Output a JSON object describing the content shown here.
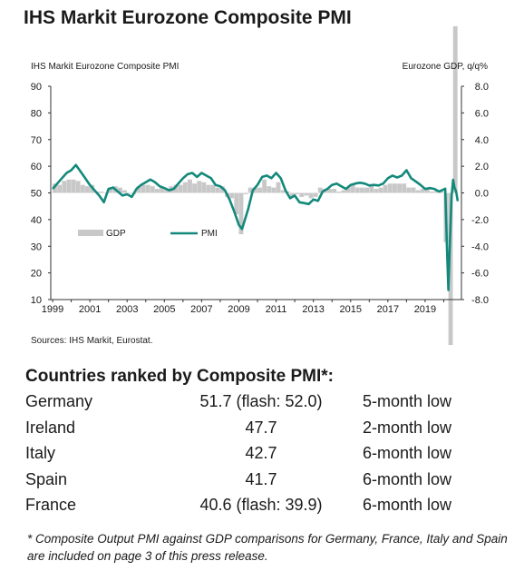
{
  "page": {
    "title": "IHS Markit Eurozone Composite PMI",
    "sources": "Sources: IHS Markit, Eurostat."
  },
  "chart_data": {
    "type": "line",
    "title": "IHS Markit Eurozone Composite PMI",
    "left_axis_label": "IHS Markit Eurozone Composite PMI",
    "right_axis_label": "Eurozone GDP, q/q%",
    "left_ylim": [
      10,
      90
    ],
    "left_ticks": [
      "90",
      "80",
      "70",
      "60",
      "50",
      "40",
      "30",
      "20",
      "10"
    ],
    "right_ylim": [
      -8.0,
      8.0
    ],
    "right_ticks": [
      "8.0",
      "6.0",
      "4.0",
      "2.0",
      "0.0",
      "-2.0",
      "-4.0",
      "-6.0",
      "-8.0"
    ],
    "xlim": [
      1998.9,
      2020.95
    ],
    "x_ticks": [
      "1999",
      "2001",
      "2003",
      "2005",
      "2007",
      "2009",
      "2011",
      "2013",
      "2015",
      "2017",
      "2019"
    ],
    "legend": {
      "position": "lower-left",
      "gdp_label": "GDP",
      "pmi_label": "PMI"
    },
    "colors": {
      "pmi": "#13897b",
      "gdp": "#c8c8c8"
    },
    "series": [
      {
        "name": "PMI",
        "axis": "left",
        "x": [
          1999.0,
          1999.25,
          1999.5,
          1999.75,
          2000.0,
          2000.25,
          2000.5,
          2000.75,
          2001.0,
          2001.25,
          2001.5,
          2001.75,
          2002.0,
          2002.25,
          2002.5,
          2002.75,
          2003.0,
          2003.25,
          2003.5,
          2003.75,
          2004.0,
          2004.25,
          2004.5,
          2004.75,
          2005.0,
          2005.25,
          2005.5,
          2005.75,
          2006.0,
          2006.25,
          2006.5,
          2006.75,
          2007.0,
          2007.25,
          2007.5,
          2007.75,
          2008.0,
          2008.25,
          2008.5,
          2008.75,
          2009.0,
          2009.17,
          2009.5,
          2009.75,
          2010.0,
          2010.25,
          2010.5,
          2010.75,
          2011.0,
          2011.25,
          2011.5,
          2011.75,
          2012.0,
          2012.25,
          2012.5,
          2012.75,
          2013.0,
          2013.25,
          2013.5,
          2013.75,
          2014.0,
          2014.25,
          2014.5,
          2014.75,
          2015.0,
          2015.25,
          2015.5,
          2015.75,
          2016.0,
          2016.25,
          2016.5,
          2016.75,
          2017.0,
          2017.25,
          2017.5,
          2017.75,
          2018.0,
          2018.25,
          2018.5,
          2018.75,
          2019.0,
          2019.25,
          2019.5,
          2019.75,
          2020.0,
          2020.08,
          2020.17,
          2020.25,
          2020.33,
          2020.42,
          2020.5,
          2020.58,
          2020.67,
          2020.75
        ],
        "values": [
          51.5,
          53.5,
          55.5,
          57.5,
          58.5,
          60.5,
          58.0,
          55.5,
          53.0,
          51.0,
          49.0,
          46.5,
          51.5,
          52.0,
          50.5,
          49.0,
          49.5,
          48.5,
          51.5,
          53.0,
          54.0,
          55.0,
          54.0,
          52.5,
          51.8,
          51.0,
          51.5,
          53.5,
          55.5,
          57.0,
          57.5,
          56.0,
          57.5,
          56.5,
          55.5,
          53.0,
          52.5,
          51.0,
          47.5,
          43.0,
          38.0,
          36.5,
          44.0,
          51.0,
          53.0,
          56.0,
          56.5,
          55.5,
          57.5,
          55.5,
          51.0,
          48.0,
          49.0,
          46.5,
          46.2,
          45.8,
          47.5,
          47.0,
          50.5,
          51.5,
          53.0,
          53.5,
          52.5,
          51.5,
          53.0,
          53.5,
          53.8,
          53.5,
          52.8,
          53.0,
          52.8,
          53.5,
          55.5,
          56.5,
          55.8,
          56.5,
          58.5,
          55.5,
          54.3,
          53.0,
          51.5,
          51.8,
          51.5,
          50.5,
          51.3,
          51.6,
          29.7,
          13.6,
          31.9,
          48.5,
          54.9,
          51.9,
          50.4,
          46.9
        ]
      },
      {
        "name": "GDP",
        "axis": "right",
        "x": [
          1999.0,
          1999.25,
          1999.5,
          1999.75,
          2000.0,
          2000.25,
          2000.5,
          2000.75,
          2001.0,
          2001.25,
          2001.5,
          2001.75,
          2002.0,
          2002.25,
          2002.5,
          2002.75,
          2003.0,
          2003.25,
          2003.5,
          2003.75,
          2004.0,
          2004.25,
          2004.5,
          2004.75,
          2005.0,
          2005.25,
          2005.5,
          2005.75,
          2006.0,
          2006.25,
          2006.5,
          2006.75,
          2007.0,
          2007.25,
          2007.5,
          2007.75,
          2008.0,
          2008.25,
          2008.5,
          2008.75,
          2009.0,
          2009.25,
          2009.5,
          2009.75,
          2010.0,
          2010.25,
          2010.5,
          2010.75,
          2011.0,
          2011.25,
          2011.5,
          2011.75,
          2012.0,
          2012.25,
          2012.5,
          2012.75,
          2013.0,
          2013.25,
          2013.5,
          2013.75,
          2014.0,
          2014.25,
          2014.5,
          2014.75,
          2015.0,
          2015.25,
          2015.5,
          2015.75,
          2016.0,
          2016.25,
          2016.5,
          2016.75,
          2017.0,
          2017.25,
          2017.5,
          2017.75,
          2018.0,
          2018.25,
          2018.5,
          2018.75,
          2019.0,
          2019.25,
          2019.5,
          2019.75,
          2020.0,
          2020.25,
          2020.5
        ],
        "values": [
          0.7,
          0.6,
          0.9,
          1.0,
          1.0,
          0.9,
          0.6,
          0.5,
          0.6,
          0.1,
          0.1,
          0.0,
          0.4,
          0.5,
          0.4,
          0.2,
          0.0,
          -0.1,
          0.5,
          0.6,
          0.6,
          0.5,
          0.3,
          0.4,
          0.3,
          0.5,
          0.6,
          0.6,
          0.8,
          1.0,
          0.7,
          0.9,
          0.8,
          0.6,
          0.6,
          0.4,
          0.5,
          -0.3,
          -0.4,
          -1.6,
          -3.1,
          -0.1,
          0.4,
          0.4,
          0.4,
          1.0,
          0.5,
          0.4,
          0.8,
          0.2,
          0.1,
          -0.3,
          -0.1,
          -0.3,
          -0.2,
          -0.4,
          -0.3,
          0.4,
          0.3,
          0.3,
          0.3,
          0.1,
          0.2,
          0.4,
          0.7,
          0.4,
          0.4,
          0.4,
          0.6,
          0.3,
          0.4,
          0.6,
          0.7,
          0.7,
          0.7,
          0.7,
          0.4,
          0.4,
          0.2,
          0.3,
          0.4,
          0.1,
          0.2,
          0.1,
          -3.7,
          -11.8,
          12.5
        ]
      }
    ]
  },
  "ranking": {
    "title": "Countries ranked by Composite PMI*:",
    "rows": [
      {
        "country": "Germany",
        "value": "51.7 (flash: 52.0)",
        "note": "5-month low"
      },
      {
        "country": "Ireland",
        "value": "47.7",
        "note": "2-month low"
      },
      {
        "country": "Italy",
        "value": "42.7",
        "note": "6-month low"
      },
      {
        "country": "Spain",
        "value": "41.7",
        "note": "6-month low"
      },
      {
        "country": "France",
        "value": "40.6 (flash: 39.9)",
        "note": "6-month low"
      }
    ],
    "footnote": "* Composite Output PMI against GDP comparisons for Germany, France, Italy and Spain are included on page 3 of this press release."
  }
}
